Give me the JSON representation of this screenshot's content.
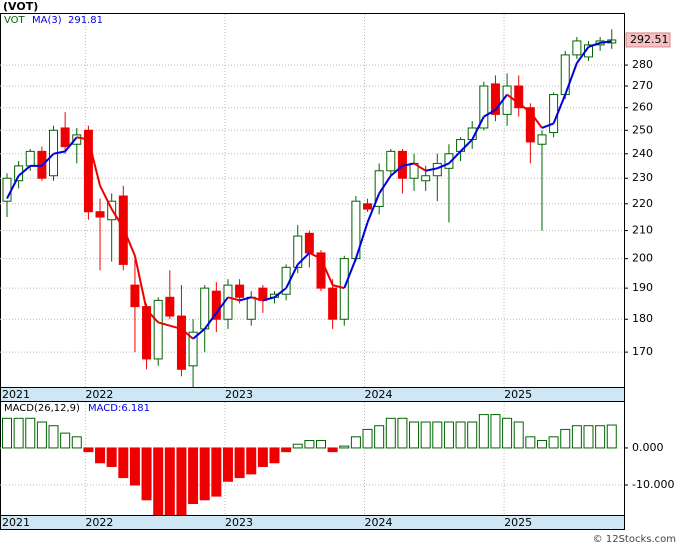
{
  "chart_data": [
    {
      "type": "candlestick",
      "title": "(VOT)",
      "name": "VOT",
      "log_scale": true,
      "grid": true,
      "up_color": "#006400",
      "down_color": "#ee0000",
      "categories": [
        "2021",
        null,
        null,
        null,
        null,
        null,
        null,
        "2022",
        null,
        null,
        null,
        null,
        null,
        null,
        null,
        null,
        null,
        null,
        null,
        "2023",
        null,
        null,
        null,
        null,
        null,
        null,
        null,
        null,
        null,
        null,
        null,
        "2024",
        null,
        null,
        null,
        null,
        null,
        null,
        null,
        null,
        null,
        null,
        null,
        "2025",
        null,
        null,
        null,
        null,
        null,
        null,
        null,
        null,
        null
      ],
      "open": [
        221,
        229,
        235,
        241,
        231,
        251,
        244,
        250,
        217,
        214,
        223,
        191,
        184,
        168,
        187,
        181,
        166,
        177,
        189,
        180,
        191,
        180,
        190,
        187,
        188,
        197,
        209,
        202,
        190,
        180,
        200,
        220,
        219,
        233,
        241,
        230,
        229,
        231,
        234,
        241,
        246,
        251,
        271,
        257,
        270,
        260,
        244,
        249,
        266,
        285,
        284,
        290,
        291
      ],
      "high": [
        232,
        237,
        242,
        243,
        252,
        258,
        251,
        252,
        222,
        224,
        227,
        201,
        185,
        187,
        196,
        191,
        180,
        191,
        192,
        193,
        193,
        189,
        191,
        189,
        198,
        212,
        210,
        203,
        193,
        201,
        223,
        222,
        236,
        242,
        242,
        240,
        235,
        240,
        244,
        247,
        254,
        272,
        275,
        276,
        275,
        262,
        250,
        267,
        287,
        294,
        292,
        294,
        298
      ],
      "low": [
        215,
        226,
        233,
        229,
        229,
        240,
        236,
        214,
        196,
        199,
        196,
        170,
        165,
        166,
        180,
        163,
        160,
        170,
        176,
        177,
        185,
        178,
        182,
        185,
        186,
        195,
        197,
        189,
        177,
        178,
        199,
        217,
        216,
        231,
        224,
        225,
        225,
        221,
        213,
        237,
        242,
        250,
        254,
        252,
        256,
        236,
        210,
        247,
        264,
        283,
        282,
        287,
        288
      ],
      "close": [
        230,
        235,
        241,
        230,
        250,
        243,
        248,
        217,
        215,
        221,
        198,
        184,
        168,
        186,
        181,
        165,
        176,
        190,
        180,
        191,
        187,
        187,
        186,
        188,
        197,
        208,
        202,
        190,
        180,
        200,
        221,
        218,
        233,
        241,
        230,
        236,
        231,
        236,
        240,
        246,
        251,
        270,
        257,
        270,
        260,
        245,
        248,
        266,
        285,
        292,
        290,
        292,
        292.51
      ],
      "ma": {
        "name": "MA(3)",
        "up_color": "#0000dd",
        "down_color": "#ee0000",
        "values": [
          222,
          231,
          235,
          235,
          240,
          241,
          247,
          246,
          227,
          218,
          211,
          201,
          183,
          179,
          178,
          177,
          174,
          177,
          182,
          187,
          186,
          187,
          186,
          187,
          190,
          198,
          202,
          200,
          191,
          190,
          200,
          213,
          224,
          231,
          235,
          236,
          233,
          234,
          236,
          241,
          246,
          256,
          259,
          266,
          262,
          258,
          251,
          253,
          266,
          281,
          289,
          291,
          291.81
        ]
      },
      "ylim": [
        160,
        306
      ],
      "yticks": [
        170,
        180,
        190,
        200,
        210,
        220,
        230,
        240,
        250,
        260,
        270,
        280
      ]
    },
    {
      "type": "macd",
      "name": "MACD(26,12,9)",
      "current_label": "MACD:6.181",
      "up_color": "#006400",
      "down_color": "#ee0000",
      "grid": true,
      "values": [
        8,
        8,
        8,
        7,
        6,
        4,
        3,
        -1,
        -4,
        -5,
        -8,
        -10,
        -14,
        -18,
        -18,
        -18,
        -15,
        -14,
        -13,
        -9,
        -8,
        -7,
        -5,
        -4,
        -1,
        1,
        2,
        2,
        -1,
        0.5,
        3,
        5,
        6,
        8,
        8,
        7,
        7,
        7,
        7,
        7,
        7,
        9,
        9,
        8,
        7,
        3,
        2,
        3,
        5,
        6,
        6,
        6,
        6.181
      ],
      "ylim": [
        -18.1,
        12.4
      ],
      "yticks": [
        {
          "value": 0,
          "label": "0.000"
        },
        {
          "value": -10,
          "label": "-10.000"
        }
      ]
    },
    {
      "type": "footer",
      "text": "© 12Stocks.com"
    }
  ]
}
